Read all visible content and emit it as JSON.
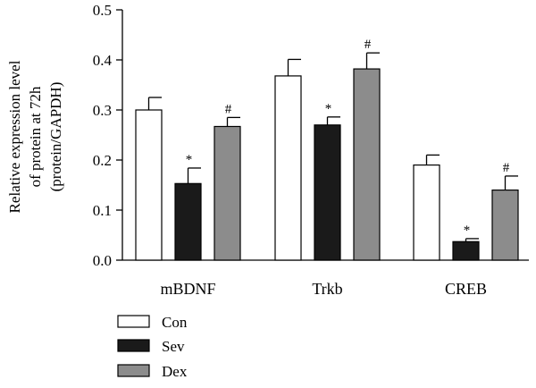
{
  "chart_data": {
    "type": "bar",
    "ylabel_lines": [
      "Relative expression level",
      "of protein at 72h",
      "(protein/GAPDH)"
    ],
    "ylim": [
      0,
      0.5
    ],
    "yticks": [
      "0.0",
      "0.1",
      "0.2",
      "0.3",
      "0.4",
      "0.5"
    ],
    "ytick_values": [
      0,
      0.1,
      0.2,
      0.3,
      0.4,
      0.5
    ],
    "categories": [
      "mBDNF",
      "Trkb",
      "CREB"
    ],
    "series": [
      {
        "name": "Con",
        "color": "#ffffff",
        "values": [
          0.3,
          0.368,
          0.19
        ],
        "errors": [
          0.025,
          0.033,
          0.02
        ]
      },
      {
        "name": "Sev",
        "color": "#1a1a1a",
        "values": [
          0.153,
          0.27,
          0.037
        ],
        "errors": [
          0.031,
          0.016,
          0.006
        ]
      },
      {
        "name": "Dex",
        "color": "#8c8c8c",
        "values": [
          0.267,
          0.382,
          0.14
        ],
        "errors": [
          0.018,
          0.032,
          0.028
        ]
      }
    ],
    "annotations": [
      {
        "category": 0,
        "series": 1,
        "text": "*"
      },
      {
        "category": 0,
        "series": 2,
        "text": "#"
      },
      {
        "category": 1,
        "series": 1,
        "text": "*"
      },
      {
        "category": 1,
        "series": 2,
        "text": "#"
      },
      {
        "category": 2,
        "series": 1,
        "text": "*"
      },
      {
        "category": 2,
        "series": 2,
        "text": "#"
      }
    ],
    "legend": {
      "placement": "bottom-left"
    },
    "grid": false
  }
}
